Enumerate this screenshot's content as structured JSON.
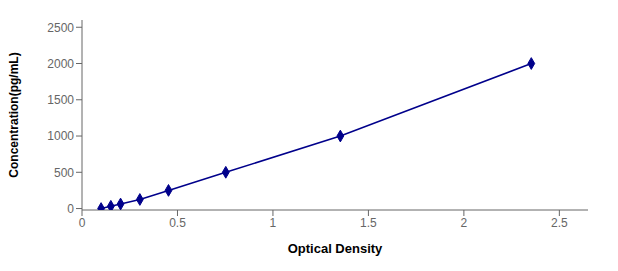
{
  "chart_data": {
    "type": "line",
    "x": [
      0.1,
      0.151,
      0.202,
      0.303,
      0.453,
      0.753,
      1.353,
      2.353
    ],
    "values": [
      0,
      31.25,
      62.5,
      125,
      250,
      500,
      1000,
      2000
    ],
    "color": "#00008B",
    "marker": "diamond",
    "line_style": "solid",
    "xlabel": "Optical Density",
    "ylabel": "Concentration(pg/mL)",
    "xlim": [
      0.0,
      2.65
    ],
    "ylim": [
      -20,
      2600
    ],
    "xticks": [
      0,
      0.5,
      1,
      1.5,
      2,
      2.5
    ],
    "yticks": [
      0,
      500,
      1000,
      1500,
      2000,
      2500
    ],
    "grid": false
  }
}
